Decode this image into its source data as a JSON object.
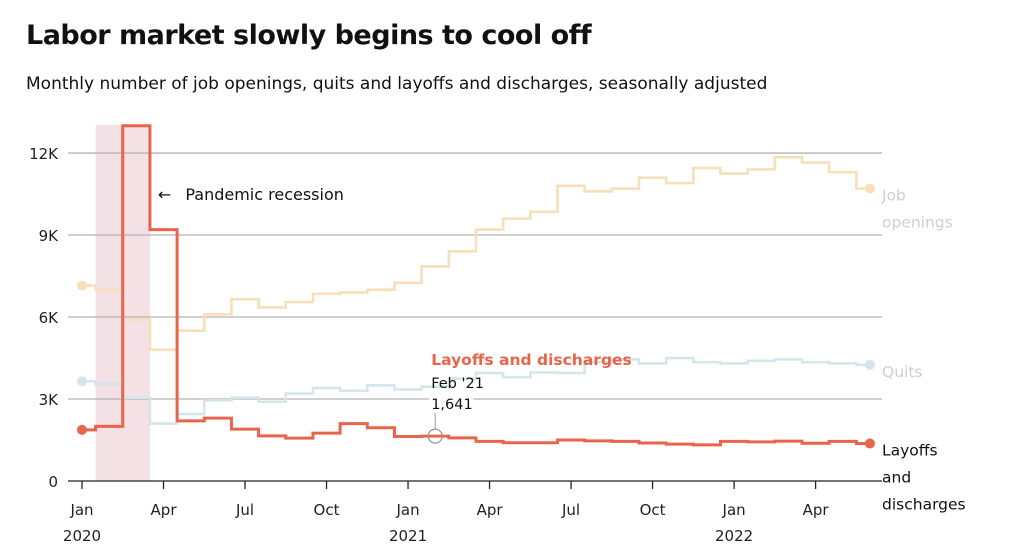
{
  "header": {
    "title": "Labor market slowly begins to cool off",
    "subtitle": "Monthly number of job openings, quits and layoffs and discharges, seasonally adjusted"
  },
  "colors": {
    "layoffs": "#e8644a",
    "job_openings": "#f7dfb8",
    "quits": "#d4e6ec",
    "recession_band": "#f3e1e6",
    "gridline": "#b3b3b3",
    "muted_label": "#cfcfcf"
  },
  "chart_data": {
    "type": "line",
    "title": "Labor market slowly begins to cool off",
    "subtitle": "Monthly number of job openings, quits and layoffs and discharges, seasonally adjusted",
    "xlabel": "",
    "ylabel": "",
    "curve": "step",
    "units": "thousands",
    "ylim": [
      0,
      13
    ],
    "y_ticks": [
      0,
      3,
      6,
      9,
      12
    ],
    "y_tick_labels": [
      "0",
      "3K",
      "6K",
      "9K",
      "12K"
    ],
    "x": [
      "2020-01",
      "2020-02",
      "2020-03",
      "2020-04",
      "2020-05",
      "2020-06",
      "2020-07",
      "2020-08",
      "2020-09",
      "2020-10",
      "2020-11",
      "2020-12",
      "2021-01",
      "2021-02",
      "2021-03",
      "2021-04",
      "2021-05",
      "2021-06",
      "2021-07",
      "2021-08",
      "2021-09",
      "2021-10",
      "2021-11",
      "2021-12",
      "2022-01",
      "2022-02",
      "2022-03",
      "2022-04",
      "2022-05",
      "2022-06"
    ],
    "x_ticks": [
      {
        "index": 0,
        "label": "Jan",
        "year": "2020"
      },
      {
        "index": 3,
        "label": "Apr",
        "year": ""
      },
      {
        "index": 6,
        "label": "Jul",
        "year": ""
      },
      {
        "index": 9,
        "label": "Oct",
        "year": ""
      },
      {
        "index": 12,
        "label": "Jan",
        "year": "2021"
      },
      {
        "index": 15,
        "label": "Apr",
        "year": ""
      },
      {
        "index": 18,
        "label": "Jul",
        "year": ""
      },
      {
        "index": 21,
        "label": "Oct",
        "year": ""
      },
      {
        "index": 24,
        "label": "Jan",
        "year": "2022"
      },
      {
        "index": 27,
        "label": "Apr",
        "year": ""
      }
    ],
    "grid": true,
    "legend": "direct-labels-right",
    "series": [
      {
        "name": "Job openings",
        "label_lines": [
          "Job",
          "openings"
        ],
        "emphasis": "muted",
        "values": [
          7.15,
          7.0,
          5.9,
          4.8,
          5.5,
          6.1,
          6.65,
          6.35,
          6.55,
          6.85,
          6.9,
          7.0,
          7.25,
          7.85,
          8.4,
          9.2,
          9.6,
          9.85,
          10.8,
          10.6,
          10.7,
          11.1,
          10.9,
          11.45,
          11.25,
          11.4,
          11.85,
          11.65,
          11.3,
          10.7
        ]
      },
      {
        "name": "Quits",
        "label_lines": [
          "Quits"
        ],
        "emphasis": "muted",
        "values": [
          3.65,
          3.55,
          3.05,
          2.1,
          2.45,
          2.95,
          3.05,
          2.9,
          3.2,
          3.4,
          3.3,
          3.5,
          3.35,
          3.45,
          3.75,
          3.95,
          3.8,
          3.97,
          3.95,
          4.35,
          4.45,
          4.3,
          4.5,
          4.35,
          4.3,
          4.4,
          4.45,
          4.35,
          4.3,
          4.25
        ]
      },
      {
        "name": "Layoffs and discharges",
        "label_lines": [
          "Layoffs",
          "and",
          "discharges"
        ],
        "emphasis": "highlight",
        "values": [
          1.87,
          2.0,
          13.0,
          9.2,
          2.2,
          2.3,
          1.9,
          1.65,
          1.57,
          1.75,
          2.1,
          1.95,
          1.63,
          1.641,
          1.58,
          1.45,
          1.4,
          1.4,
          1.5,
          1.47,
          1.45,
          1.39,
          1.35,
          1.32,
          1.45,
          1.43,
          1.46,
          1.38,
          1.45,
          1.37
        ]
      }
    ],
    "annotations": [
      {
        "type": "band",
        "label": "Pandemic recession",
        "arrow": "←",
        "from": "2020-02",
        "to": "2020-04"
      },
      {
        "type": "tooltip",
        "series_label": "Layoffs and discharges",
        "date_label": "Feb '21",
        "value_label": "1,641",
        "index": 13
      }
    ]
  }
}
